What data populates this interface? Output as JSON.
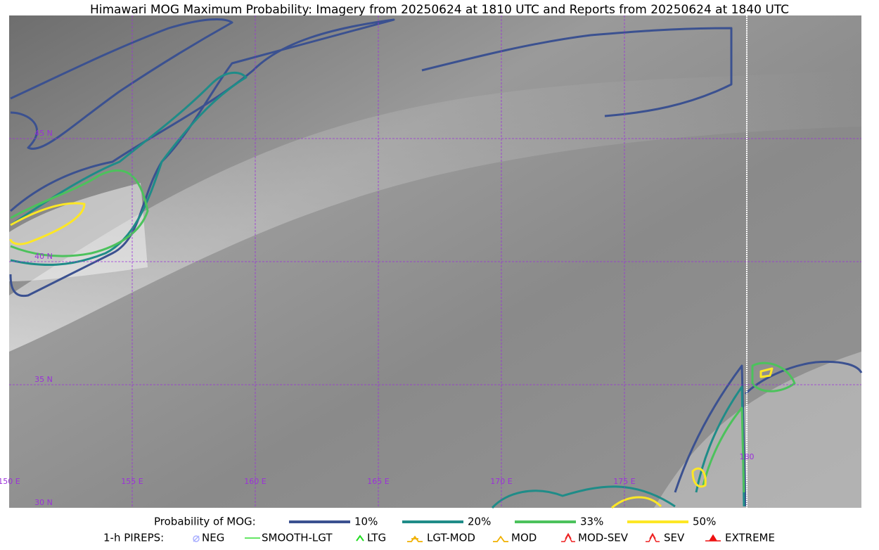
{
  "header": {
    "title": "Himawari MOG Maximum Probability: Imagery from 20250624 at 1810 UTC and Reports from 20250624 at 1840 UTC"
  },
  "map": {
    "lat_labels": [
      "45 N",
      "40 N",
      "35 N",
      "30 N"
    ],
    "lon_labels": [
      "150 E",
      "155 E",
      "160 E",
      "165 E",
      "170 E",
      "175 E",
      "180"
    ]
  },
  "legend": {
    "probability": {
      "label": "Probability of MOG:",
      "items": [
        {
          "label": "10%",
          "color": "#3b5190"
        },
        {
          "label": "20%",
          "color": "#1f8c88"
        },
        {
          "label": "33%",
          "color": "#4cc25c"
        },
        {
          "label": "50%",
          "color": "#fde725"
        }
      ]
    },
    "pireps": {
      "label": "1-h PIREPS:",
      "items": [
        {
          "label": "NEG",
          "color": "#aab0ff"
        },
        {
          "label": "SMOOTH-LGT",
          "color": "#33dd33"
        },
        {
          "label": "LTG",
          "color": "#22dd22"
        },
        {
          "label": "LGT-MOD",
          "color": "#f0b000"
        },
        {
          "label": "MOD",
          "color": "#f0b000"
        },
        {
          "label": "MOD-SEV",
          "color": "#ee2222"
        },
        {
          "label": "SEV",
          "color": "#ee2222"
        },
        {
          "label": "EXTREME",
          "color": "#ee1111"
        }
      ]
    }
  }
}
